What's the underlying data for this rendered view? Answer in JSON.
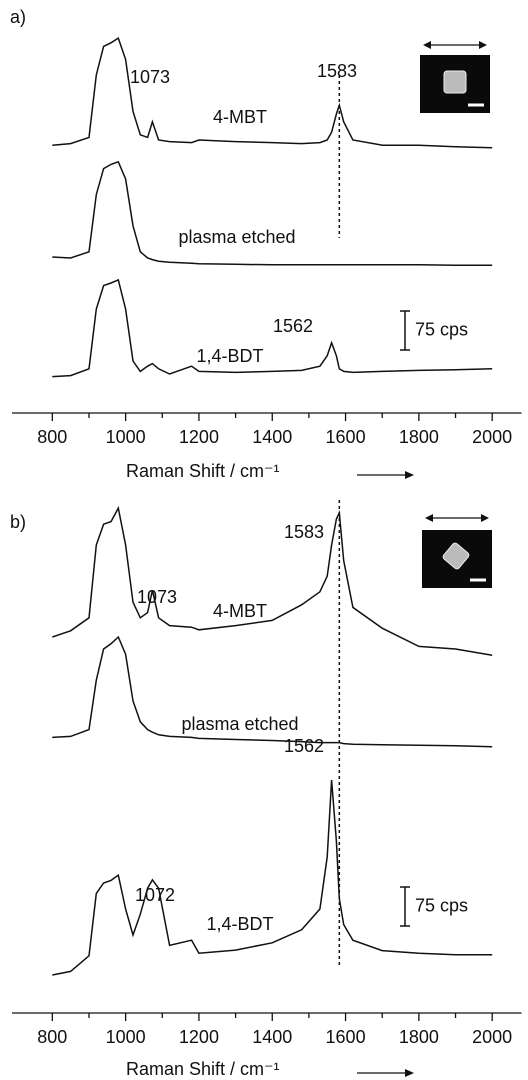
{
  "chart_data": [
    {
      "type": "line",
      "panel_label": "a)",
      "xlabel": "Raman Shift / cm⁻¹",
      "xlim": [
        690,
        2080
      ],
      "xticks": [
        800,
        1000,
        1200,
        1400,
        1600,
        1800,
        2000
      ],
      "minor_xticks": [
        900,
        1100,
        1300,
        1500,
        1700,
        1900
      ],
      "ylim": [
        0,
        740
      ],
      "reference_line": 1583,
      "scale_bar": {
        "value": 75,
        "label": "75 cps"
      },
      "annotations": [
        "1073",
        "4-MBT",
        "1583",
        "plasma etched",
        "1562",
        "1,4-BDT"
      ],
      "x": [
        800,
        850,
        900,
        920,
        940,
        960,
        980,
        1000,
        1020,
        1040,
        1060,
        1073,
        1090,
        1120,
        1180,
        1200,
        1300,
        1400,
        1480,
        1530,
        1550,
        1562,
        1575,
        1583,
        1595,
        1620,
        1700,
        1800,
        1900,
        2000
      ],
      "series": [
        {
          "color": "#111111",
          "values": [
            515,
            518,
            530,
            650,
            705,
            712,
            721,
            680,
            580,
            535,
            530,
            560,
            525,
            522,
            520,
            525,
            522,
            520,
            518,
            520,
            525,
            540,
            575,
            592,
            560,
            525,
            515,
            515,
            512,
            510
          ]
        },
        {
          "color": "#111111",
          "values": [
            300,
            298,
            310,
            420,
            470,
            478,
            483,
            450,
            360,
            310,
            298,
            295,
            292,
            290,
            288,
            287,
            286,
            285,
            285,
            285,
            285,
            285,
            285,
            285,
            285,
            285,
            285,
            285,
            284,
            284
          ]
        },
        {
          "color": "#111111",
          "values": [
            70,
            72,
            85,
            200,
            245,
            250,
            256,
            200,
            100,
            80,
            90,
            95,
            85,
            75,
            90,
            80,
            78,
            80,
            82,
            90,
            110,
            135,
            110,
            85,
            80,
            78,
            80,
            82,
            83,
            85
          ]
        }
      ]
    },
    {
      "type": "line",
      "panel_label": "b)",
      "xlabel": "Raman Shift / cm⁻¹",
      "xlim": [
        690,
        2080
      ],
      "xticks": [
        800,
        1000,
        1200,
        1400,
        1600,
        1800,
        2000
      ],
      "minor_xticks": [
        900,
        1100,
        1300,
        1500,
        1700,
        1900
      ],
      "ylim": [
        0,
        990
      ],
      "reference_line": 1583,
      "scale_bar": {
        "value": 75,
        "label": "75 cps"
      },
      "annotations": [
        "1073",
        "4-MBT",
        "1583",
        "plasma etched",
        "1562",
        "1072",
        "1,4-BDT"
      ],
      "x": [
        800,
        850,
        900,
        920,
        940,
        960,
        980,
        1000,
        1020,
        1040,
        1060,
        1073,
        1090,
        1120,
        1180,
        1200,
        1300,
        1400,
        1480,
        1530,
        1550,
        1562,
        1575,
        1583,
        1595,
        1620,
        1700,
        1800,
        1900,
        2000
      ],
      "series": [
        {
          "color": "#111111",
          "values": [
            723,
            735,
            760,
            900,
            940,
            945,
            971,
            900,
            790,
            760,
            770,
            813,
            760,
            745,
            742,
            737,
            745,
            755,
            785,
            810,
            840,
            900,
            950,
            962,
            870,
            780,
            740,
            705,
            700,
            688
          ]
        },
        {
          "color": "#111111",
          "values": [
            530,
            532,
            545,
            640,
            700,
            710,
            723,
            690,
            600,
            560,
            545,
            540,
            535,
            532,
            530,
            528,
            526,
            524,
            522,
            520,
            520,
            520,
            520,
            520,
            518,
            517,
            516,
            515,
            514,
            512
          ]
        },
        {
          "color": "#111111",
          "values": [
            73,
            80,
            110,
            230,
            250,
            255,
            265,
            200,
            150,
            190,
            240,
            256,
            240,
            130,
            140,
            115,
            121,
            135,
            160,
            200,
            300,
            448,
            330,
            220,
            170,
            140,
            120,
            115,
            112,
            112
          ]
        }
      ]
    }
  ]
}
